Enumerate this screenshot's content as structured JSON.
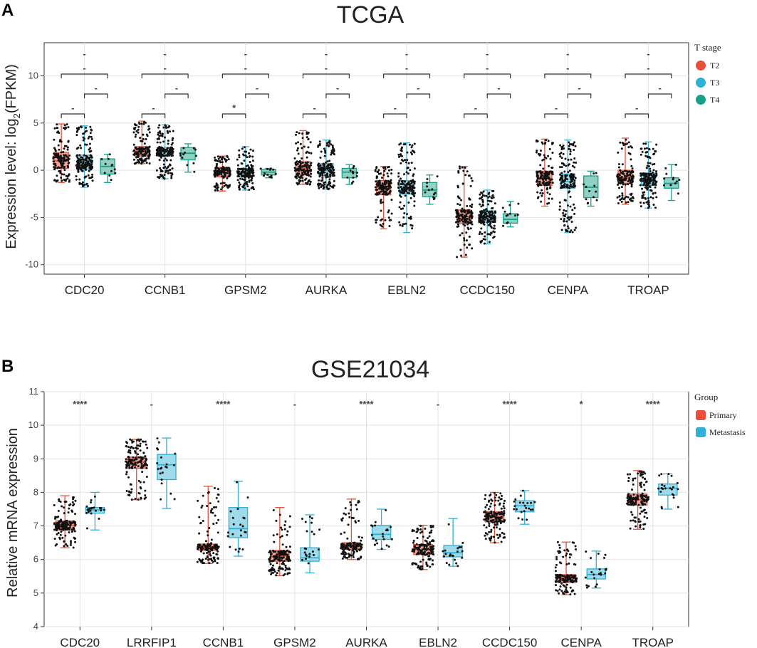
{
  "chart_data": [
    {
      "panel": "A",
      "type": "boxplot",
      "title": "TCGA",
      "ylabel": "Expression level: log",
      "ylabel_sub": "2",
      "ylabel_tail": "(FPKM)",
      "ylim": [
        -11,
        13.5
      ],
      "yticks": [
        -10,
        -5,
        0,
        5,
        10
      ],
      "categories": [
        "CDC20",
        "CCNB1",
        "GPSM2",
        "AURKA",
        "EBLN2",
        "CCDC150",
        "CENPA",
        "TROAP"
      ],
      "legend": {
        "title": "T stage",
        "position": "right",
        "entries": [
          "T2",
          "T3",
          "T4"
        ]
      },
      "series": [
        {
          "name": "T2",
          "color": "#e8503a",
          "fill": "#f3a497",
          "boxes": [
            {
              "min": -1.3,
              "q1": 0.2,
              "median": 1.0,
              "q3": 1.9,
              "max": 4.9
            },
            {
              "min": 0.7,
              "q1": 1.5,
              "median": 2.0,
              "q3": 2.5,
              "max": 5.2
            },
            {
              "min": -2.2,
              "q1": -0.7,
              "median": -0.2,
              "q3": 0.3,
              "max": 1.5
            },
            {
              "min": -1.5,
              "q1": -0.5,
              "median": 0.2,
              "q3": 0.9,
              "max": 4.2
            },
            {
              "min": -6.2,
              "q1": -2.6,
              "median": -1.8,
              "q3": -1.1,
              "max": 0.4
            },
            {
              "min": -9.2,
              "q1": -5.6,
              "median": -4.9,
              "q3": -4.2,
              "max": 0.4
            },
            {
              "min": -3.8,
              "q1": -1.6,
              "median": -0.9,
              "q3": -0.1,
              "max": 3.3
            },
            {
              "min": -3.6,
              "q1": -1.4,
              "median": -0.8,
              "q3": 0.0,
              "max": 3.4
            }
          ]
        },
        {
          "name": "T3",
          "color": "#2fb0d6",
          "fill": "#9fdaea",
          "boxes": [
            {
              "min": -1.8,
              "q1": 0.1,
              "median": 0.8,
              "q3": 1.6,
              "max": 4.7
            },
            {
              "min": -0.9,
              "q1": 1.5,
              "median": 2.0,
              "q3": 2.4,
              "max": 4.8
            },
            {
              "min": -2.1,
              "q1": -0.7,
              "median": -0.3,
              "q3": 0.2,
              "max": 2.5
            },
            {
              "min": -2.0,
              "q1": -0.6,
              "median": 0.0,
              "q3": 0.7,
              "max": 3.2
            },
            {
              "min": -6.6,
              "q1": -2.5,
              "median": -1.8,
              "q3": -1.1,
              "max": 2.9
            },
            {
              "min": -7.8,
              "q1": -5.5,
              "median": -4.9,
              "q3": -4.3,
              "max": -2.1
            },
            {
              "min": -6.6,
              "q1": -1.9,
              "median": -1.2,
              "q3": -0.4,
              "max": 3.2
            },
            {
              "min": -4.0,
              "q1": -1.6,
              "median": -1.0,
              "q3": -0.3,
              "max": 3.0
            }
          ]
        },
        {
          "name": "T4",
          "color": "#18a08a",
          "fill": "#8fd1c2",
          "boxes": [
            {
              "min": -1.3,
              "q1": -0.4,
              "median": 0.4,
              "q3": 1.2,
              "max": 1.7
            },
            {
              "min": -0.2,
              "q1": 1.1,
              "median": 1.8,
              "q3": 2.4,
              "max": 2.8
            },
            {
              "min": -0.8,
              "q1": -0.5,
              "median": -0.2,
              "q3": 0.1,
              "max": 0.2
            },
            {
              "min": -1.5,
              "q1": -0.8,
              "median": -0.2,
              "q3": 0.2,
              "max": 0.6
            },
            {
              "min": -3.6,
              "q1": -2.8,
              "median": -2.1,
              "q3": -1.3,
              "max": -0.5
            },
            {
              "min": -6.0,
              "q1": -5.6,
              "median": -5.2,
              "q3": -4.6,
              "max": -3.3
            },
            {
              "min": -3.8,
              "q1": -2.9,
              "median": -1.8,
              "q3": -0.6,
              "max": -0.1
            },
            {
              "min": -3.2,
              "q1": -1.9,
              "median": -1.4,
              "q3": -0.8,
              "max": 0.6
            }
          ]
        }
      ],
      "significance_pairs": [
        "T2 vs T4",
        "T3 vs T4",
        "T2 vs T3"
      ],
      "significance": [
        [
          "-",
          "-",
          "-"
        ],
        [
          "-",
          "-",
          "-"
        ],
        [
          "-",
          "-",
          "*"
        ],
        [
          "-",
          "-",
          "-"
        ],
        [
          "-",
          "-",
          "-"
        ],
        [
          "-",
          "-",
          "-"
        ],
        [
          "-",
          "-",
          "-"
        ],
        [
          "-",
          "-",
          "-"
        ]
      ]
    },
    {
      "panel": "B",
      "type": "boxplot",
      "title": "GSE21034",
      "ylabel": "Relative mRNA expression",
      "ylim": [
        4,
        11
      ],
      "yticks": [
        4,
        5,
        6,
        7,
        8,
        9,
        10,
        11
      ],
      "categories": [
        "CDC20",
        "LRRFIP1",
        "CCNB1",
        "GPSM2",
        "AURKA",
        "EBLN2",
        "CCDC150",
        "CENPA",
        "TROAP"
      ],
      "legend": {
        "title": "Group",
        "position": "right",
        "entries": [
          "Primary",
          "Metastasis"
        ]
      },
      "series": [
        {
          "name": "Primary",
          "color": "#e8503a",
          "fill": "#f3a497",
          "boxes": [
            {
              "min": 6.35,
              "q1": 6.88,
              "median": 7.02,
              "q3": 7.15,
              "max": 7.9
            },
            {
              "min": 7.78,
              "q1": 8.72,
              "median": 8.9,
              "q3": 9.05,
              "max": 9.58
            },
            {
              "min": 5.88,
              "q1": 6.27,
              "median": 6.37,
              "q3": 6.46,
              "max": 8.18
            },
            {
              "min": 5.52,
              "q1": 5.95,
              "median": 6.1,
              "q3": 6.27,
              "max": 7.55
            },
            {
              "min": 6.0,
              "q1": 6.3,
              "median": 6.4,
              "q3": 6.5,
              "max": 7.8
            },
            {
              "min": 5.7,
              "q1": 6.15,
              "median": 6.3,
              "q3": 6.45,
              "max": 7.02
            },
            {
              "min": 6.5,
              "q1": 7.12,
              "median": 7.28,
              "q3": 7.42,
              "max": 8.0
            },
            {
              "min": 4.95,
              "q1": 5.32,
              "median": 5.45,
              "q3": 5.55,
              "max": 6.52
            },
            {
              "min": 6.9,
              "q1": 7.62,
              "median": 7.78,
              "q3": 7.95,
              "max": 8.65
            }
          ]
        },
        {
          "name": "Metastasis",
          "color": "#2fb0d6",
          "fill": "#9fdaea",
          "boxes": [
            {
              "min": 6.88,
              "q1": 7.38,
              "median": 7.48,
              "q3": 7.55,
              "max": 8.0
            },
            {
              "min": 7.52,
              "q1": 8.38,
              "median": 8.82,
              "q3": 9.13,
              "max": 9.62
            },
            {
              "min": 6.1,
              "q1": 6.65,
              "median": 6.92,
              "q3": 7.55,
              "max": 8.33
            },
            {
              "min": 5.6,
              "q1": 5.95,
              "median": 6.05,
              "q3": 6.35,
              "max": 7.33
            },
            {
              "min": 6.3,
              "q1": 6.6,
              "median": 6.75,
              "q3": 7.02,
              "max": 7.5
            },
            {
              "min": 5.8,
              "q1": 6.08,
              "median": 6.2,
              "q3": 6.42,
              "max": 7.22
            },
            {
              "min": 7.05,
              "q1": 7.42,
              "median": 7.6,
              "q3": 7.75,
              "max": 8.05
            },
            {
              "min": 5.15,
              "q1": 5.42,
              "median": 5.55,
              "q3": 5.72,
              "max": 6.25
            },
            {
              "min": 7.5,
              "q1": 7.92,
              "median": 8.12,
              "q3": 8.25,
              "max": 8.55
            }
          ]
        }
      ],
      "significance": [
        "****",
        "-",
        "****",
        "-",
        "****",
        "-",
        "****",
        "*",
        "****"
      ]
    }
  ]
}
